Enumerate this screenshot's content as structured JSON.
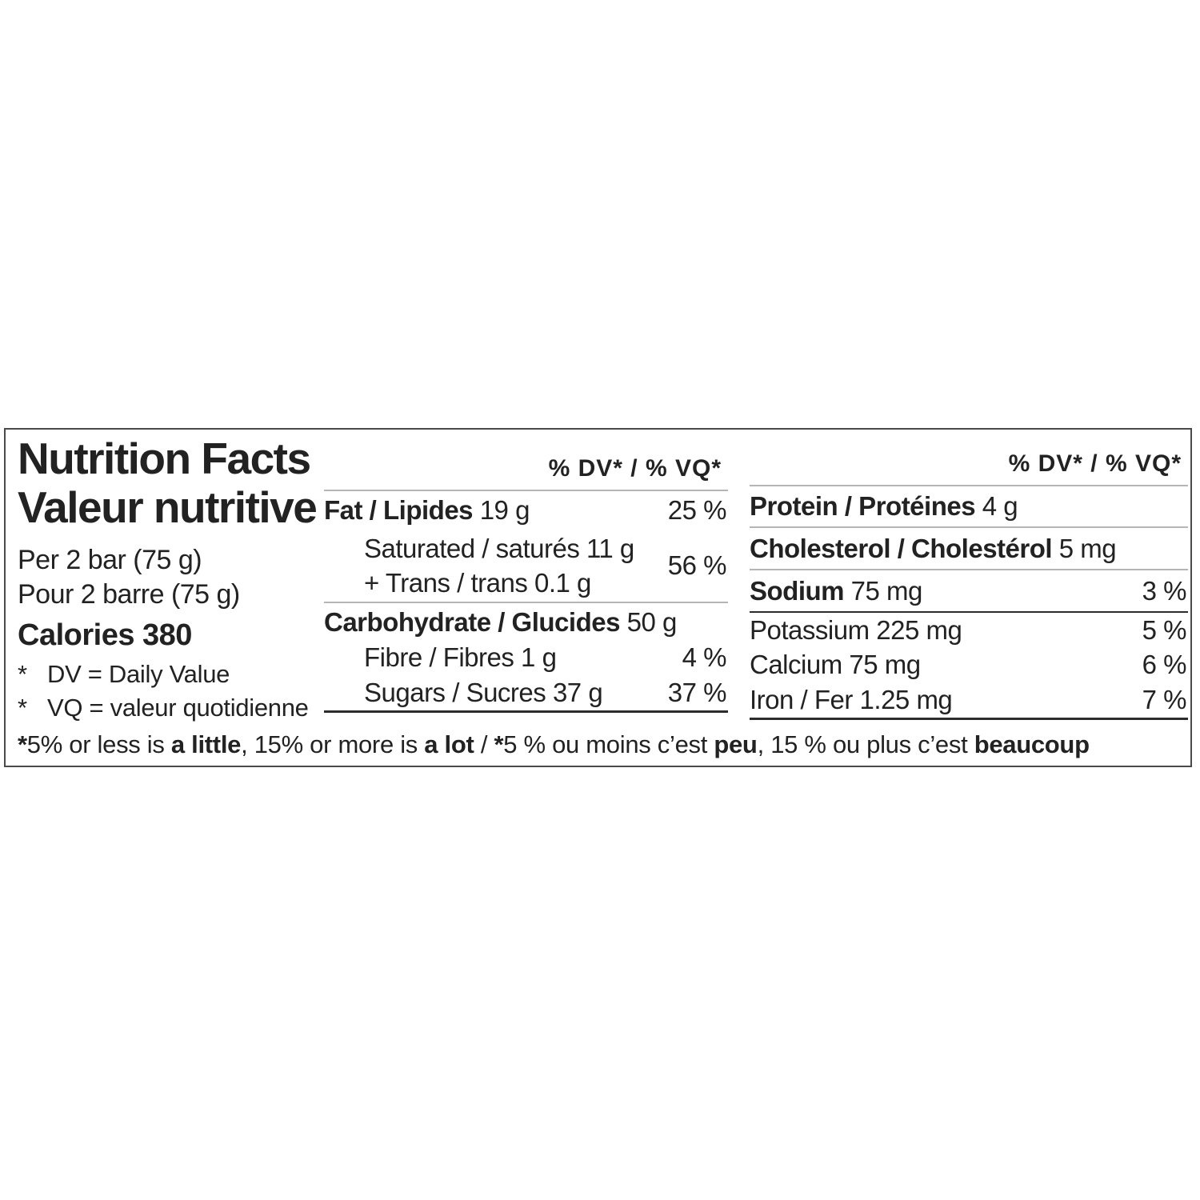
{
  "label": {
    "title_en": "Nutrition Facts",
    "title_fr": "Valeur nutritive",
    "serving_en": "Per 2 bar (75 g)",
    "serving_fr": "Pour 2 barre (75 g)",
    "calories": "Calories 380",
    "asterisk": "*",
    "dv_def": "DV = Daily Value",
    "vq_def": "VQ = valeur quotidienne"
  },
  "mid": {
    "header": "% DV* / % VQ*",
    "fat": {
      "label": "Fat / Lipides",
      "amount": "19 g",
      "percent": "25 %"
    },
    "saturated_line1": {
      "label": "Saturated / saturés",
      "amount": "11 g"
    },
    "saturated_line2": {
      "label": "+ Trans / trans",
      "amount": "0.1 g"
    },
    "saturated_percent": "56 %",
    "carb": {
      "label": "Carbohydrate / Glucides",
      "amount": "50 g"
    },
    "fibre": {
      "label": "Fibre / Fibres",
      "amount": "1 g",
      "percent": "4 %"
    },
    "sugars": {
      "label": "Sugars / Sucres",
      "amount": "37 g",
      "percent": "37 %"
    }
  },
  "right": {
    "header": "% DV* / % VQ*",
    "protein": {
      "label": "Protein / Protéines",
      "amount": "4 g"
    },
    "cholesterol": {
      "label": "Cholesterol / Cholestérol",
      "amount": "5 mg"
    },
    "sodium": {
      "label": "Sodium",
      "amount": "75 mg",
      "percent": "3 %"
    },
    "potassium": {
      "label": "Potassium",
      "amount": "225 mg",
      "percent": "5 %"
    },
    "calcium": {
      "label": "Calcium",
      "amount": "75 mg",
      "percent": "6 %"
    },
    "iron": {
      "label": "Iron / Fer",
      "amount": "1.25 mg",
      "percent": "7 %"
    }
  },
  "footnote": {
    "segments": [
      {
        "text": "*"
      },
      {
        "text": "5% or less is "
      },
      {
        "text": "a little"
      },
      {
        "text": ", 15% or more is "
      },
      {
        "text": "a lot"
      },
      {
        "text": " / "
      },
      {
        "text": "*"
      },
      {
        "text": "5 % ou moins c’est "
      },
      {
        "text": "peu"
      },
      {
        "text": ", 15 % ou plus c’est "
      },
      {
        "text": "beaucoup"
      }
    ]
  },
  "colors": {
    "text": "#222222",
    "thin_rule": "#b5b5b5",
    "thick_rule": "#2c2c2c",
    "border": "#4a4a4a",
    "background": "#ffffff"
  }
}
